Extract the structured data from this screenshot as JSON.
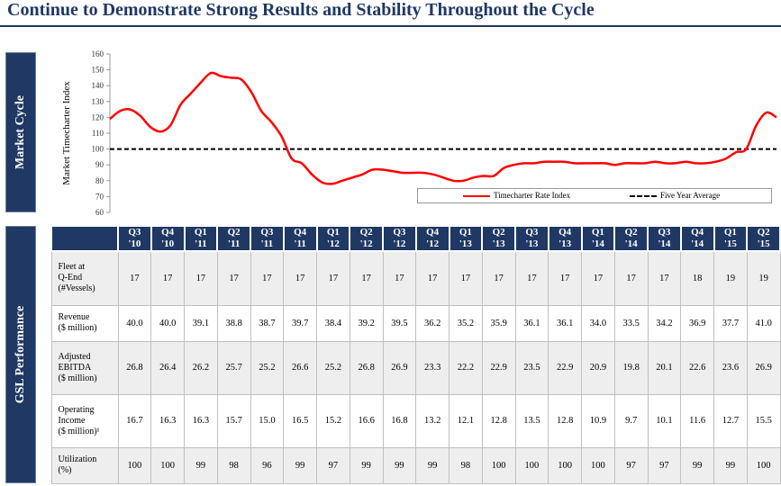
{
  "title": "Continue to Demonstrate Strong Results and Stability Throughout the Cycle",
  "sections": {
    "market": "Market Cycle",
    "gsl": "GSL Performance"
  },
  "chart_data": {
    "type": "line",
    "ylabel": "Market Timecharter Index",
    "ylim": [
      60,
      160
    ],
    "yticks": [
      60,
      70,
      80,
      90,
      100,
      110,
      120,
      130,
      140,
      150,
      160
    ],
    "grid": false,
    "legend": "bottom-right",
    "series": [
      {
        "name": "Timecharter Rate Index",
        "color": "#ff0000",
        "values": [
          119,
          124,
          125,
          121,
          114,
          111,
          115,
          128,
          135,
          142,
          148,
          146,
          145,
          144,
          136,
          124,
          117,
          108,
          94,
          91,
          84,
          79,
          78,
          80,
          82,
          84,
          87,
          87,
          86,
          85,
          85,
          85,
          84,
          82,
          80,
          80,
          82,
          83,
          83,
          88,
          90,
          91,
          91,
          92,
          92,
          92,
          91,
          91,
          91,
          91,
          90,
          91,
          91,
          91,
          92,
          91,
          91,
          92,
          91,
          91,
          92,
          94,
          98,
          100,
          115,
          123,
          120
        ]
      },
      {
        "name": "Five Year Average",
        "color": "#000000",
        "style": "dashed",
        "constant": 100
      }
    ]
  },
  "table": {
    "quarters": [
      [
        "Q3",
        "'10"
      ],
      [
        "Q4",
        "'10"
      ],
      [
        "Q1",
        "'11"
      ],
      [
        "Q2",
        "'11"
      ],
      [
        "Q3",
        "'11"
      ],
      [
        "Q4",
        "'11"
      ],
      [
        "Q1",
        "'12"
      ],
      [
        "Q2",
        "'12"
      ],
      [
        "Q3",
        "'12"
      ],
      [
        "Q4",
        "'12"
      ],
      [
        "Q1",
        "'13"
      ],
      [
        "Q2",
        "'13"
      ],
      [
        "Q3",
        "'13"
      ],
      [
        "Q4",
        "'13"
      ],
      [
        "Q1",
        "'14"
      ],
      [
        "Q2",
        "'14"
      ],
      [
        "Q3",
        "'14"
      ],
      [
        "Q4",
        "'14"
      ],
      [
        "Q1",
        "'15"
      ],
      [
        "Q2",
        "'15"
      ]
    ],
    "rows": [
      {
        "label": [
          "Fleet at",
          "Q-End",
          "(#Vessels)"
        ],
        "values": [
          "17",
          "17",
          "17",
          "17",
          "17",
          "17",
          "17",
          "17",
          "17",
          "17",
          "17",
          "17",
          "17",
          "17",
          "17",
          "17",
          "17",
          "18",
          "19",
          "19"
        ]
      },
      {
        "label": [
          "Revenue",
          "($ million)"
        ],
        "values": [
          "40.0",
          "40.0",
          "39.1",
          "38.8",
          "38.7",
          "39.7",
          "38.4",
          "39.2",
          "39.5",
          "36.2",
          "35.2",
          "35.9",
          "36.1",
          "36.1",
          "34.0",
          "33.5",
          "34.2",
          "36.9",
          "37.7",
          "41.0"
        ]
      },
      {
        "label": [
          "Adjusted",
          "EBITDA",
          "($ million)"
        ],
        "values": [
          "26.8",
          "26.4",
          "26.2",
          "25.7",
          "25.2",
          "26.6",
          "25.2",
          "26.8",
          "26.9",
          "23.3",
          "22.2",
          "22.9",
          "23.5",
          "22.9",
          "20.9",
          "19.8",
          "20.1",
          "22.6",
          "23.6",
          "26.9"
        ]
      },
      {
        "label": [
          "Operating",
          "Income",
          "($ million)¹"
        ],
        "values": [
          "16.7",
          "16.3",
          "16.3",
          "15.7",
          "15.0",
          "16.5",
          "15.2",
          "16.6",
          "16.8",
          "13.2",
          "12.1",
          "12.8",
          "13.5",
          "12.8",
          "10.9",
          "9.7",
          "10.1",
          "11.6",
          "12.7",
          "15.5"
        ]
      },
      {
        "label": [
          "Utilization",
          "(%)"
        ],
        "values": [
          "100",
          "100",
          "99",
          "98",
          "96",
          "99",
          "97",
          "99",
          "99",
          "99",
          "98",
          "100",
          "100",
          "100",
          "100",
          "97",
          "97",
          "99",
          "99",
          "100"
        ]
      }
    ]
  }
}
